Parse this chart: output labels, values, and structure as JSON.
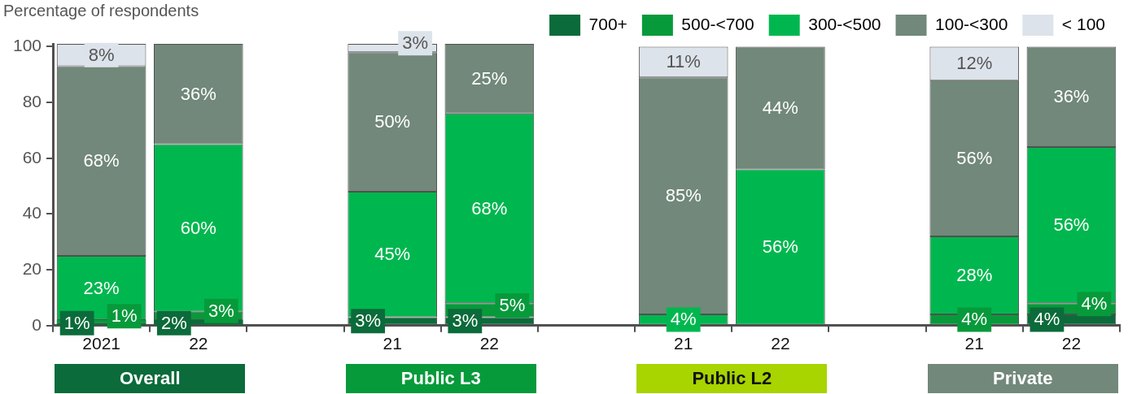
{
  "chart_data": {
    "type": "bar",
    "stacked": true,
    "ylabel": "Percentage of respondents",
    "categories": [
      "2021",
      "22",
      null,
      "21",
      "22",
      null,
      "21",
      "22",
      null,
      "21",
      "22"
    ],
    "ylim": [
      0,
      101
    ],
    "yticks": [
      0,
      20,
      40,
      60,
      80,
      100
    ],
    "grid": false,
    "legend": "top right",
    "series": [
      {
        "name": "700+",
        "color": "#0b6b3a",
        "values": [
          1,
          2,
          null,
          3,
          3,
          null,
          null,
          null,
          null,
          null,
          4
        ],
        "value_labels": [
          "1%",
          "2%",
          null,
          "3%",
          "3%",
          null,
          null,
          null,
          null,
          null,
          "4%"
        ]
      },
      {
        "name": "500-<700",
        "color": "#079a3b",
        "values": [
          1,
          3,
          null,
          null,
          5,
          null,
          null,
          null,
          null,
          4,
          4
        ],
        "value_labels": [
          "1%",
          "3%",
          null,
          null,
          "5%",
          null,
          null,
          null,
          null,
          "4%",
          "4%"
        ]
      },
      {
        "name": "300-<500",
        "color": "#00b74f",
        "values": [
          23,
          60,
          null,
          45,
          68,
          null,
          4,
          56,
          null,
          28,
          56
        ],
        "value_labels": [
          "23%",
          "60%",
          null,
          "45%",
          "68%",
          null,
          "4%",
          "56%",
          null,
          "28%",
          "56%"
        ]
      },
      {
        "name": "100-<300",
        "color": "#71887a",
        "values": [
          68,
          36,
          null,
          50,
          25,
          null,
          85,
          44,
          null,
          56,
          36
        ],
        "value_labels": [
          "68%",
          "36%",
          null,
          "50%",
          "25%",
          null,
          "85%",
          "44%",
          null,
          "56%",
          "36%"
        ]
      },
      {
        "name": "< 100",
        "color": "#dde3ea",
        "values": [
          8,
          null,
          null,
          3,
          null,
          null,
          11,
          null,
          null,
          12,
          null
        ],
        "value_labels": [
          "8%",
          null,
          null,
          "3%",
          null,
          null,
          "11%",
          null,
          null,
          "12%",
          null
        ]
      }
    ],
    "annotations": [
      "Overall",
      "Public L3",
      "Public L2",
      "Private"
    ]
  }
}
